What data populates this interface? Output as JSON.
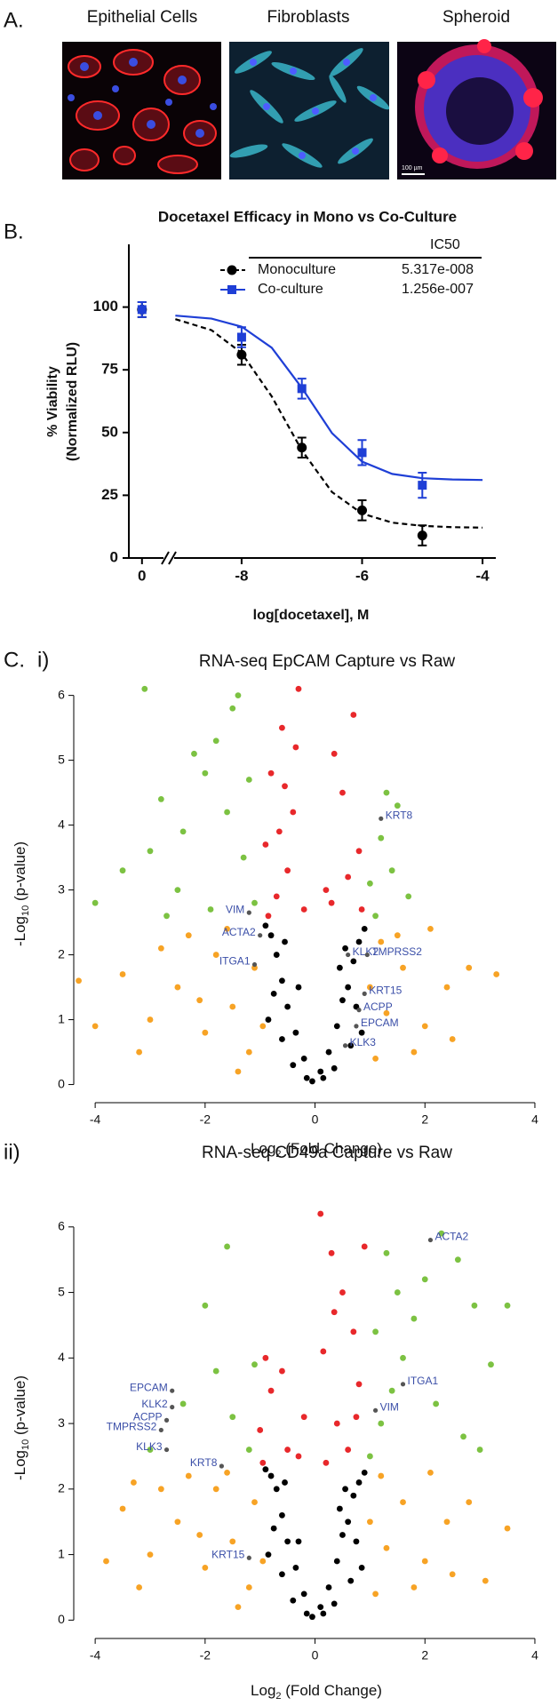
{
  "panel_labels": {
    "a": "A.",
    "b": "B.",
    "c": "C.",
    "c_i": "i)",
    "c_ii": "ii)"
  },
  "images": [
    {
      "title": "Epithelial Cells"
    },
    {
      "title": "Fibroblasts"
    },
    {
      "title": "Spheroid",
      "scale_bar": "100 µm"
    }
  ],
  "chart_data": [
    {
      "type": "line",
      "title": "Docetaxel Efficacy in Mono vs  Co-Culture",
      "xlabel": "log[docetaxel], M",
      "ylabel": [
        "% Viability",
        "(Normalized  RLU)"
      ],
      "legend_header": "IC50",
      "xlim": [
        [
          -0.22,
          0.36
        ],
        [
          -9.12,
          -3.78
        ]
      ],
      "xticks": [
        0,
        -8,
        -6,
        -4
      ],
      "ylim": [
        0,
        125
      ],
      "yticks": [
        0,
        25,
        50,
        75,
        100
      ],
      "series": [
        {
          "name": "Monoculture",
          "ic50": "5.317e-008",
          "color": "#000000",
          "marker": "circle",
          "dashed": true,
          "x": [
            0,
            -8,
            -7,
            -6,
            -5
          ],
          "values": [
            99,
            81,
            44,
            19,
            9
          ],
          "errors": [
            3,
            4,
            4,
            4,
            4
          ],
          "fit_x": [
            -9.1,
            -8.5,
            -8,
            -7.5,
            -7,
            -6.5,
            -6,
            -5.5,
            -5,
            -4.5,
            -4
          ],
          "fit_y": [
            95.2,
            90.8,
            81.7,
            64.4,
            42.9,
            26.3,
            17.7,
            14.1,
            12.8,
            12.3,
            12.1
          ]
        },
        {
          "name": "Co-culture",
          "ic50": "1.256e-007",
          "color": "#1f3fd6",
          "marker": "square",
          "dashed": false,
          "x": [
            0,
            -8,
            -7,
            -6,
            -5
          ],
          "values": [
            99,
            88,
            67.5,
            42,
            29
          ],
          "errors": [
            3,
            4,
            4,
            5,
            5
          ],
          "fit_x": [
            -9.1,
            -8.5,
            -8,
            -7.5,
            -7,
            -6.5,
            -6,
            -5.5,
            -5,
            -4.5,
            -4
          ],
          "fit_y": [
            96.6,
            95.4,
            92.2,
            83.8,
            67.8,
            49.8,
            38.4,
            33.5,
            31.8,
            31.3,
            31.1
          ]
        }
      ]
    },
    {
      "type": "scatter",
      "title": "RNA-seq EpCAM Capture vs Raw",
      "xlabel": [
        "Log",
        "2",
        " (Fold Change)"
      ],
      "ylabel": [
        "-Log",
        "10",
        " (p-value)"
      ],
      "xlim": [
        -4.39,
        4.34
      ],
      "xticks": [
        -4,
        -2,
        0,
        2,
        4
      ],
      "ylim": [
        -0.28,
        6.31
      ],
      "yticks": [
        0,
        1,
        2,
        3,
        4,
        5,
        6
      ],
      "series": [
        {
          "color": "#f7a325",
          "x": [
            -1.2,
            -1.5,
            -2.0,
            -2.5,
            -3.0,
            -1.8,
            -2.3,
            -3.5,
            -4.0,
            -4.3,
            -1.1,
            -1.4,
            -2.8,
            -3.2,
            -1.6,
            1.1,
            1.3,
            1.6,
            2.0,
            2.4,
            2.8,
            3.3,
            1.2,
            1.8,
            2.1,
            2.5,
            1.0,
            -2.1,
            -0.95,
            1.5
          ],
          "y": [
            0.5,
            1.2,
            0.8,
            1.5,
            1.0,
            2.0,
            2.3,
            1.7,
            0.9,
            1.6,
            1.8,
            0.2,
            2.1,
            0.5,
            2.4,
            0.4,
            1.1,
            1.8,
            0.9,
            1.5,
            1.8,
            1.7,
            2.2,
            0.5,
            2.4,
            0.7,
            1.5,
            1.3,
            0.9,
            2.3
          ]
        },
        {
          "color": "#7cc242",
          "x": [
            -1.1,
            -1.3,
            -1.6,
            -1.8,
            -2.0,
            -2.4,
            -2.8,
            -3.1,
            -2.5,
            -1.5,
            -3.5,
            -4.0,
            -2.2,
            -1.2,
            -3.0,
            -1.9,
            1.0,
            1.2,
            1.5,
            1.1,
            1.4,
            1.7,
            1.3,
            -2.7,
            -1.4
          ],
          "y": [
            2.8,
            3.5,
            4.2,
            5.3,
            4.8,
            3.9,
            4.4,
            6.1,
            3.0,
            5.8,
            3.3,
            2.8,
            5.1,
            4.7,
            3.6,
            2.7,
            3.1,
            3.8,
            4.3,
            2.6,
            3.3,
            2.9,
            4.5,
            2.6,
            6.0
          ]
        },
        {
          "color": "#e8282b",
          "x": [
            -0.3,
            -0.6,
            -0.8,
            -0.4,
            -0.9,
            -0.5,
            -0.7,
            -0.2,
            -0.35,
            -0.65,
            0.3,
            0.6,
            0.8,
            0.5,
            0.7,
            0.35,
            0.2,
            0.85,
            -0.85,
            -0.55
          ],
          "y": [
            6.1,
            5.5,
            4.8,
            4.2,
            3.7,
            3.3,
            2.9,
            2.7,
            5.2,
            3.9,
            2.8,
            3.2,
            3.6,
            4.5,
            5.7,
            5.1,
            3.0,
            2.7,
            2.6,
            4.6
          ]
        },
        {
          "color": "#000000",
          "x": [
            -0.05,
            0.1,
            -0.2,
            0.25,
            -0.35,
            0.4,
            -0.5,
            0.5,
            -0.6,
            0.6,
            -0.7,
            0.7,
            -0.8,
            0.8,
            -0.85,
            0.85,
            -0.9,
            0.9,
            -0.4,
            0.35,
            -0.6,
            0.65,
            -0.75,
            0.75,
            -0.15,
            0.15,
            -0.55,
            0.55,
            -0.3,
            0.45
          ],
          "y": [
            0.05,
            0.2,
            0.4,
            0.5,
            0.8,
            0.9,
            1.2,
            1.3,
            1.6,
            1.5,
            2.0,
            1.9,
            2.3,
            2.2,
            1.0,
            0.8,
            2.45,
            2.4,
            0.3,
            0.25,
            0.7,
            0.6,
            1.4,
            1.2,
            0.1,
            0.1,
            2.2,
            2.1,
            1.5,
            1.8
          ]
        }
      ],
      "annotations": [
        {
          "text": "KRT8",
          "x": 1.2,
          "y": 4.1
        },
        {
          "text": "VIM",
          "x": -1.2,
          "y": 2.65
        },
        {
          "text": "ACTA2",
          "x": -1.0,
          "y": 2.3
        },
        {
          "text": "ITGA1",
          "x": -1.1,
          "y": 1.85
        },
        {
          "text": "KLK2",
          "x": 0.6,
          "y": 2.0
        },
        {
          "text": "TMPRSS2",
          "x": 0.95,
          "y": 2.0
        },
        {
          "text": "KRT15",
          "x": 0.9,
          "y": 1.4
        },
        {
          "text": "ACPP",
          "x": 0.8,
          "y": 1.15
        },
        {
          "text": "EPCAM",
          "x": 0.75,
          "y": 0.9
        },
        {
          "text": "KLK3",
          "x": 0.55,
          "y": 0.6
        }
      ]
    },
    {
      "type": "scatter",
      "title": "RNA-seq CD49a Capture vs Raw",
      "xlabel": [
        "Log",
        "2",
        " (Fold Change)"
      ],
      "ylabel": [
        "-Log",
        "10",
        " (p-value)"
      ],
      "xlim": [
        -4.39,
        4.34
      ],
      "xticks": [
        -4,
        -2,
        0,
        2,
        4
      ],
      "ylim": [
        -0.28,
        6.35
      ],
      "yticks": [
        0,
        1,
        2,
        3,
        4,
        5,
        6
      ],
      "series": [
        {
          "color": "#f7a325",
          "x": [
            -1.2,
            -1.5,
            -2.0,
            -2.5,
            -3.0,
            -1.8,
            -2.3,
            -3.5,
            -3.8,
            -3.3,
            -1.1,
            -1.4,
            -2.8,
            -3.2,
            -1.6,
            1.1,
            1.3,
            1.6,
            2.0,
            2.4,
            2.8,
            3.5,
            1.2,
            1.8,
            2.1,
            2.5,
            1.0,
            -2.1,
            -0.95,
            3.1
          ],
          "y": [
            0.5,
            1.2,
            0.8,
            1.5,
            1.0,
            2.0,
            2.2,
            1.7,
            0.9,
            2.1,
            1.8,
            0.2,
            2.0,
            0.5,
            2.25,
            0.4,
            1.1,
            1.8,
            0.9,
            1.5,
            1.8,
            1.4,
            2.2,
            0.5,
            2.25,
            0.7,
            1.5,
            1.3,
            0.9,
            0.6
          ]
        },
        {
          "color": "#7cc242",
          "x": [
            1.0,
            1.2,
            1.4,
            1.6,
            1.8,
            2.0,
            2.3,
            2.6,
            2.9,
            3.2,
            3.5,
            1.1,
            1.5,
            2.2,
            2.7,
            1.3,
            3.0,
            -1.2,
            -1.5,
            -1.8,
            -2.0,
            -2.4,
            -1.6,
            -3.0,
            -1.1
          ],
          "y": [
            2.5,
            3.0,
            3.5,
            4.0,
            4.6,
            5.2,
            5.9,
            5.5,
            4.8,
            3.9,
            4.8,
            4.4,
            5.0,
            3.3,
            2.8,
            5.6,
            2.6,
            2.6,
            3.1,
            3.8,
            4.8,
            3.3,
            5.7,
            2.6,
            3.9
          ]
        },
        {
          "color": "#e8282b",
          "x": [
            0.1,
            0.3,
            0.5,
            0.7,
            0.8,
            0.4,
            0.6,
            0.2,
            0.9,
            0.15,
            -0.2,
            -0.5,
            -0.8,
            -0.9,
            -1.0,
            -0.6,
            -0.3,
            -0.95,
            0.35,
            0.75
          ],
          "y": [
            6.2,
            5.6,
            5.0,
            4.4,
            3.6,
            3.0,
            2.6,
            2.4,
            5.7,
            4.1,
            3.1,
            2.6,
            3.5,
            4.0,
            2.9,
            3.8,
            2.5,
            2.4,
            4.7,
            3.1
          ]
        },
        {
          "color": "#000000",
          "x": [
            -0.05,
            0.1,
            -0.2,
            0.25,
            -0.35,
            0.4,
            -0.5,
            0.5,
            -0.6,
            0.6,
            -0.7,
            0.7,
            -0.8,
            0.8,
            -0.85,
            0.85,
            -0.9,
            0.9,
            -0.4,
            0.35,
            -0.6,
            0.65,
            -0.75,
            0.75,
            -0.15,
            0.15,
            -0.55,
            0.55,
            -0.3,
            0.45
          ],
          "y": [
            0.05,
            0.2,
            0.4,
            0.5,
            0.8,
            0.9,
            1.2,
            1.3,
            1.6,
            1.5,
            2.0,
            1.9,
            2.2,
            2.1,
            1.0,
            0.8,
            2.3,
            2.25,
            0.3,
            0.25,
            0.7,
            0.6,
            1.4,
            1.2,
            0.1,
            0.1,
            2.1,
            2.0,
            1.2,
            1.7
          ]
        }
      ],
      "annotations": [
        {
          "text": "ACTA2",
          "x": 2.1,
          "y": 5.8
        },
        {
          "text": "ITGA1",
          "x": 1.6,
          "y": 3.6
        },
        {
          "text": "VIM",
          "x": 1.1,
          "y": 3.2
        },
        {
          "text": "EPCAM",
          "x": -2.6,
          "y": 3.5
        },
        {
          "text": "KLK2",
          "x": -2.6,
          "y": 3.25
        },
        {
          "text": "ACPP",
          "x": -2.7,
          "y": 3.05
        },
        {
          "text": "TMPRSS2",
          "x": -2.8,
          "y": 2.9
        },
        {
          "text": "KLK3",
          "x": -2.7,
          "y": 2.6
        },
        {
          "text": "KRT8",
          "x": -1.7,
          "y": 2.35
        },
        {
          "text": "KRT15",
          "x": -1.2,
          "y": 0.95
        }
      ]
    }
  ]
}
